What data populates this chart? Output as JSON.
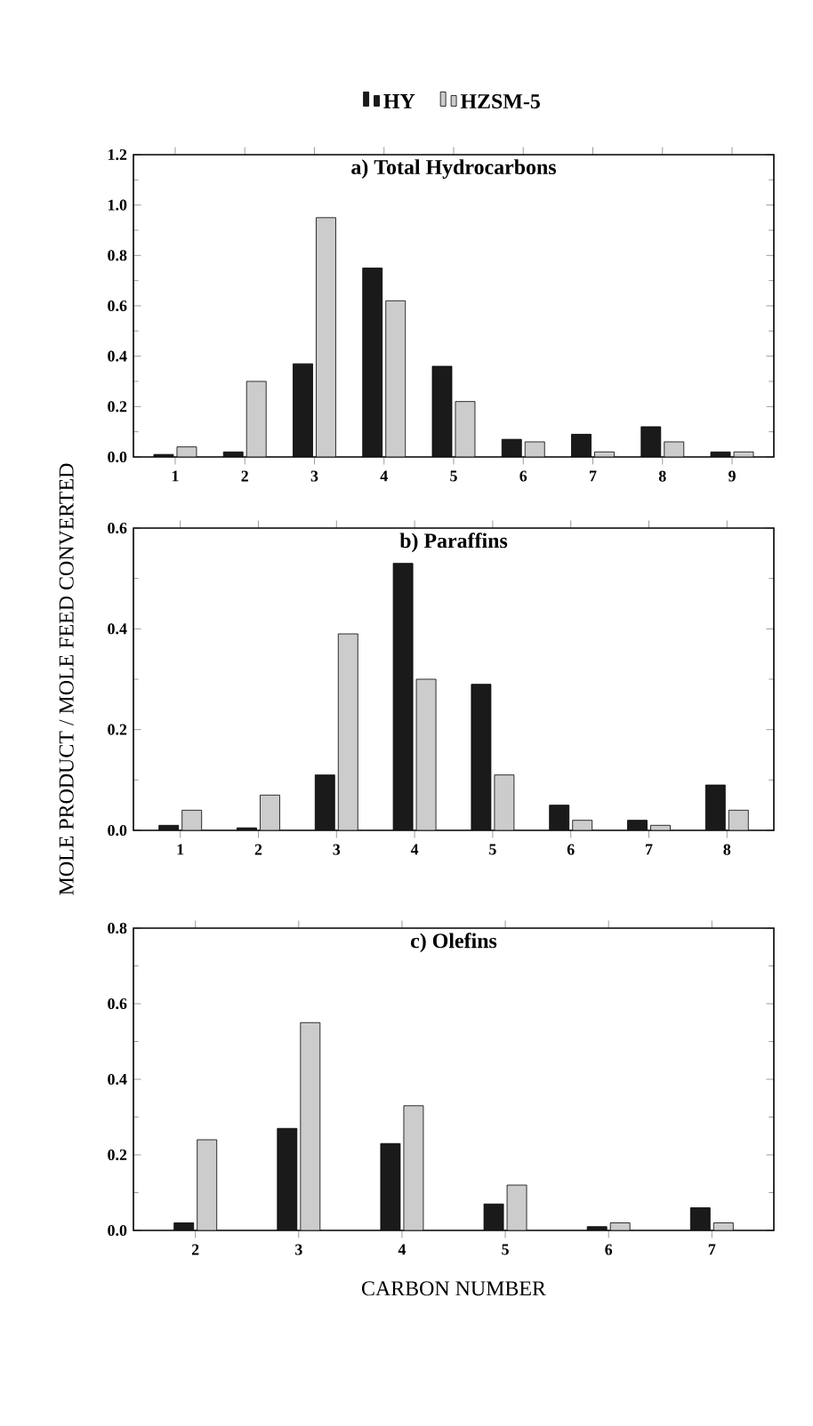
{
  "chart_data": [
    {
      "type": "bar",
      "title": "a) Total Hydrocarbons",
      "categories": [
        "1",
        "2",
        "3",
        "4",
        "5",
        "6",
        "7",
        "8",
        "9"
      ],
      "legend": "top",
      "series": [
        {
          "name": "HY",
          "color": "#1a1a1a",
          "values": [
            0.01,
            0.02,
            0.37,
            0.75,
            0.36,
            0.07,
            0.09,
            0.12,
            0.02
          ]
        },
        {
          "name": "HZSM-5",
          "color": "#cccccc",
          "values": [
            0.04,
            0.3,
            0.95,
            0.62,
            0.22,
            0.06,
            0.02,
            0.06,
            0.02
          ]
        }
      ],
      "ylim": [
        0,
        1.2
      ],
      "yticks": [
        {
          "value": 0,
          "label": "0.0"
        },
        {
          "value": 0.2,
          "label": "0.2"
        },
        {
          "value": 0.4,
          "label": "0.4"
        },
        {
          "value": 0.6,
          "label": "0.6"
        },
        {
          "value": 0.8,
          "label": "0.8"
        },
        {
          "value": 1.0,
          "label": "1.0"
        },
        {
          "value": 1.2,
          "label": "1.2"
        }
      ]
    },
    {
      "type": "bar",
      "title": "b) Paraffins",
      "ylabel": "MOLE PRODUCT / MOLE FEED CONVERTED",
      "categories": [
        "1",
        "2",
        "3",
        "4",
        "5",
        "6",
        "7",
        "8"
      ],
      "series": [
        {
          "color": "#1a1a1a",
          "values": [
            0.01,
            0.005,
            0.11,
            0.53,
            0.29,
            0.05,
            0.02,
            0.09
          ]
        },
        {
          "color": "#cccccc",
          "values": [
            0.04,
            0.07,
            0.39,
            0.3,
            0.11,
            0.02,
            0.01,
            0.04
          ]
        }
      ],
      "ylim": [
        0,
        0.6
      ],
      "yticks": [
        {
          "value": 0,
          "label": "0.0"
        },
        {
          "value": 0.2,
          "label": "0.2"
        },
        {
          "value": 0.4,
          "label": "0.4"
        },
        {
          "value": 0.6,
          "label": "0.6"
        }
      ]
    },
    {
      "type": "bar",
      "title": "c) Olefins",
      "xlabel": "CARBON NUMBER",
      "categories": [
        "2",
        "3",
        "4",
        "5",
        "6",
        "7"
      ],
      "series": [
        {
          "color": "#1a1a1a",
          "values": [
            0.02,
            0.27,
            0.23,
            0.07,
            0.01,
            0.06
          ]
        },
        {
          "color": "#cccccc",
          "values": [
            0.24,
            0.55,
            0.33,
            0.12,
            0.02,
            0.02
          ]
        }
      ],
      "ylim": [
        0,
        0.8
      ],
      "yticks": [
        {
          "value": 0,
          "label": "0.0"
        },
        {
          "value": 0.2,
          "label": "0.2"
        },
        {
          "value": 0.4,
          "label": "0.4"
        },
        {
          "value": 0.6,
          "label": "0.6"
        },
        {
          "value": 0.8,
          "label": "0.8"
        }
      ]
    }
  ]
}
